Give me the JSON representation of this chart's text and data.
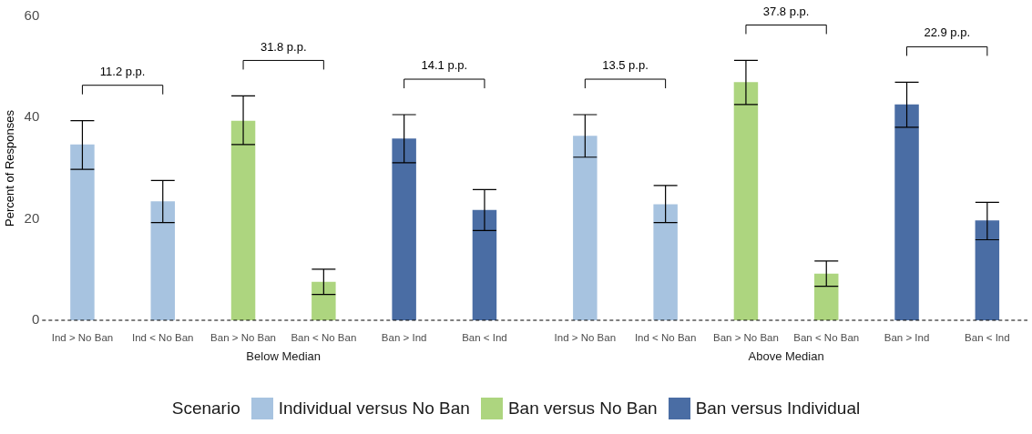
{
  "chart_data": {
    "type": "bar",
    "ylabel": "Percent of Responses",
    "legend_title": "Scenario",
    "legend": "bottom",
    "grid": false,
    "categories": [
      "Ind > No Ban",
      "Ind < No Ban",
      "Ban > No Ban",
      "Ban < No Ban",
      "Ban > Ind",
      "Ban < Ind",
      "Ind > No Ban",
      "Ind < No Ban",
      "Ban > No Ban",
      "Ban < No Ban",
      "Ban > Ind",
      "Ban < Ind"
    ],
    "series": [
      {
        "name": "Individual versus No Ban",
        "color": "#a7c3e0",
        "values": [
          34.7,
          23.5,
          null,
          null,
          null,
          null,
          36.4,
          22.9,
          null,
          null,
          null,
          null
        ],
        "errors": [
          [
            29.8,
            39.4
          ],
          [
            19.3,
            27.6
          ],
          null,
          null,
          null,
          null,
          [
            32.2,
            40.6
          ],
          [
            19.3,
            26.6
          ],
          null,
          null,
          null,
          null
        ]
      },
      {
        "name": "Ban versus No Ban",
        "color": "#add57f",
        "values": [
          null,
          null,
          39.4,
          7.6,
          null,
          null,
          null,
          null,
          47.0,
          9.2,
          null,
          null
        ],
        "errors": [
          null,
          null,
          [
            34.7,
            44.3
          ],
          [
            5.1,
            10.1
          ],
          null,
          null,
          null,
          null,
          [
            42.6,
            51.3
          ],
          [
            6.7,
            11.7
          ],
          null,
          null
        ]
      },
      {
        "name": "Ban versus Individual",
        "color": "#4a6da4",
        "values": [
          null,
          null,
          null,
          null,
          35.9,
          21.8,
          null,
          null,
          null,
          null,
          42.6,
          19.7
        ],
        "errors": [
          null,
          null,
          null,
          null,
          [
            31.1,
            40.6
          ],
          [
            17.7,
            25.8
          ],
          null,
          null,
          null,
          null,
          [
            38.1,
            47.0
          ],
          [
            15.9,
            23.3
          ]
        ]
      }
    ],
    "ylim": [
      0,
      60
    ],
    "yticks": [
      0,
      20,
      40,
      60
    ],
    "ref_lines": [
      {
        "axis": "y",
        "value": 0,
        "color": "#000000",
        "line_style": "dashed"
      }
    ],
    "annotations": [
      "11.2 p.p.",
      "31.8 p.p.",
      "14.1 p.p.",
      "13.5 p.p.",
      "37.8 p.p.",
      "22.9 p.p.",
      "Below Median",
      "Above Median"
    ]
  }
}
